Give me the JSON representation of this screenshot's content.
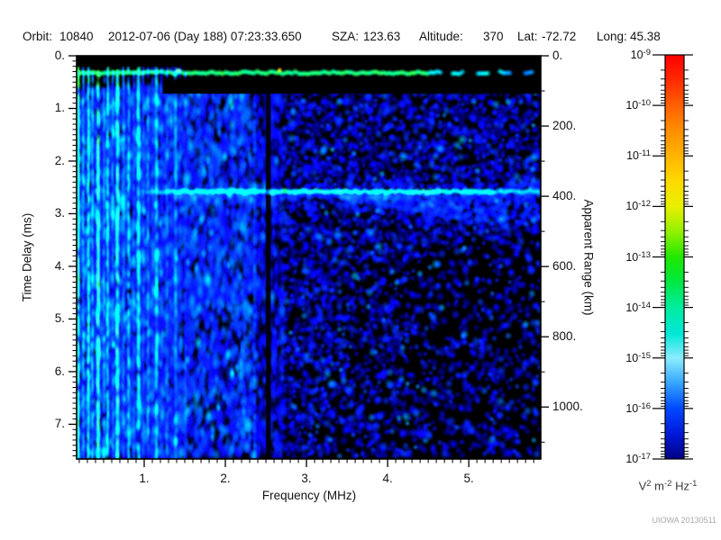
{
  "header": {
    "orbit_label": "Orbit:",
    "orbit_value": "10840",
    "datetime": "2012-07-06 (Day 188) 07:23:33.650",
    "sza_label": "SZA:",
    "sza_value": "123.63",
    "altitude_label": "Altitude:",
    "altitude_value": "370",
    "lat_label": "Lat:",
    "lat_value": "-72.72",
    "long_label": "Long:",
    "long_value": "45.38"
  },
  "footer": {
    "credit": "UIOWA 20130511"
  },
  "chart_data": {
    "type": "heatmap",
    "title": "",
    "xlabel": "Frequency (MHz)",
    "ylabel_left": "Time Delay (ms)",
    "ylabel_right": "Apparent Range (km)",
    "x_axis": {
      "range": [
        0.167,
        5.887
      ],
      "major_ticks": [
        {
          "label": "1.",
          "value": 1
        },
        {
          "label": "2.",
          "value": 2
        },
        {
          "label": "3.",
          "value": 3
        },
        {
          "label": "4.",
          "value": 4
        },
        {
          "label": "5.",
          "value": 5
        }
      ],
      "minor_step": 0.1
    },
    "y_left": {
      "range": [
        0,
        7.66
      ],
      "major_ticks": [
        {
          "label": "0.",
          "value": 0
        },
        {
          "label": "1.",
          "value": 1
        },
        {
          "label": "2.",
          "value": 2
        },
        {
          "label": "3.",
          "value": 3
        },
        {
          "label": "4.",
          "value": 4
        },
        {
          "label": "5.",
          "value": 5
        },
        {
          "label": "6.",
          "value": 6
        },
        {
          "label": "7.",
          "value": 7
        }
      ],
      "minor_step": 0.1
    },
    "y_right": {
      "range": [
        0,
        1148
      ],
      "major_ticks": [
        {
          "label": "0.",
          "value": 0
        },
        {
          "label": "200.",
          "value": 200
        },
        {
          "label": "400.",
          "value": 400
        },
        {
          "label": "600.",
          "value": 600
        },
        {
          "label": "800.",
          "value": 800
        },
        {
          "label": "1000.",
          "value": 1000
        }
      ],
      "minor_step": 100
    },
    "colorbar": {
      "scale": "log",
      "tick_exponents": [
        -9,
        -10,
        -11,
        -12,
        -13,
        -14,
        -15,
        -16,
        -17
      ],
      "units_parts": [
        {
          "base": "V",
          "exp": "2"
        },
        {
          "base": "m",
          "exp": "-2"
        },
        {
          "base": "Hz",
          "exp": "-1"
        }
      ],
      "gradient": [
        {
          "frac": 0.0,
          "color": "#ff0000"
        },
        {
          "frac": 0.06,
          "color": "#ff2800"
        },
        {
          "frac": 0.125,
          "color": "#ff6000"
        },
        {
          "frac": 0.19,
          "color": "#ff9000"
        },
        {
          "frac": 0.25,
          "color": "#ffb400"
        },
        {
          "frac": 0.31,
          "color": "#ffd800"
        },
        {
          "frac": 0.375,
          "color": "#e8f000"
        },
        {
          "frac": 0.44,
          "color": "#90f000"
        },
        {
          "frac": 0.5,
          "color": "#20e800"
        },
        {
          "frac": 0.56,
          "color": "#00e840"
        },
        {
          "frac": 0.625,
          "color": "#00eda0"
        },
        {
          "frac": 0.69,
          "color": "#00e8d8"
        },
        {
          "frac": 0.75,
          "color": "#8cecff"
        },
        {
          "frac": 0.81,
          "color": "#38a8ff"
        },
        {
          "frac": 0.875,
          "color": "#0048ff"
        },
        {
          "frac": 0.94,
          "color": "#0018d8"
        },
        {
          "frac": 1.0,
          "color": "#000080"
        }
      ]
    },
    "spectrogram": {
      "background": "#000000",
      "seed": 20130511,
      "colormap": [
        {
          "t": 0.0,
          "rgb": [
            0,
            0,
            90
          ]
        },
        {
          "t": 0.12,
          "rgb": [
            0,
            0,
            190
          ]
        },
        {
          "t": 0.22,
          "rgb": [
            10,
            10,
            255
          ]
        },
        {
          "t": 0.32,
          "rgb": [
            0,
            80,
            255
          ]
        },
        {
          "t": 0.45,
          "rgb": [
            0,
            170,
            255
          ]
        },
        {
          "t": 0.55,
          "rgb": [
            0,
            235,
            235
          ]
        },
        {
          "t": 0.62,
          "rgb": [
            0,
            245,
            170
          ]
        },
        {
          "t": 0.7,
          "rgb": [
            40,
            250,
            90
          ]
        },
        {
          "t": 0.78,
          "rgb": [
            60,
            235,
            40
          ]
        },
        {
          "t": 0.85,
          "rgb": [
            190,
            240,
            0
          ]
        },
        {
          "t": 0.9,
          "rgb": [
            255,
            190,
            0
          ]
        },
        {
          "t": 0.95,
          "rgb": [
            255,
            110,
            0
          ]
        },
        {
          "t": 1.0,
          "rgb": [
            255,
            20,
            0
          ]
        }
      ],
      "features": {
        "top_black_band": {
          "t_ms": [
            0,
            0.205
          ]
        },
        "transmit_band": {
          "t_ms": [
            0.205,
            0.44
          ],
          "intensity": 0.62,
          "dash_gap_start_frac": 0.76,
          "hot_spots": [
            {
              "mhz": 1.42,
              "t_ms": 0.28,
              "intensity": 0.84
            },
            {
              "mhz": 2.67,
              "t_ms": 0.27,
              "intensity": 0.92
            }
          ]
        },
        "gap_band": {
          "t_ms": [
            0.44,
            0.72
          ],
          "x_start_mhz": 1.22
        },
        "plasma_stripes": {
          "mhz_range": [
            0.167,
            1.55
          ],
          "max_intensity": 0.68
        },
        "ground_echo": {
          "t_ms": 2.58,
          "mhz_start": 0.98,
          "intensity": 0.62,
          "haze_depth_ms": 0.5
        },
        "quiet_band": {
          "mhz": [
            2.5,
            2.56
          ],
          "streak_mhz": 2.36
        },
        "noise": {
          "base_intensity": 0.2,
          "left_density": 0.95,
          "mid_density": 0.72,
          "right_bottom_density": 0.42
        }
      }
    }
  }
}
